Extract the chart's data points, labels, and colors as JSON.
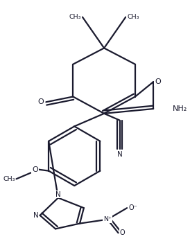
{
  "bg_color": "#ffffff",
  "line_color": "#1a1a2e",
  "lw": 1.6,
  "fs": 8.0,
  "figsize": [
    2.74,
    3.45
  ],
  "dpi": 100,
  "xlim": [
    0,
    274
  ],
  "ylim": [
    0,
    345
  ]
}
